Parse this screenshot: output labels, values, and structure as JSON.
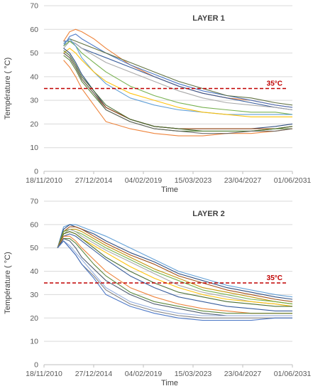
{
  "chart_data": [
    {
      "type": "line",
      "title": "LAYER 1",
      "xlabel": "Time",
      "ylabel": "Température ( °C)",
      "ylim": [
        0,
        70
      ],
      "yticks": [
        0,
        10,
        20,
        30,
        40,
        50,
        60,
        70
      ],
      "xticks": [
        "18/11/2010",
        "27/12/2014",
        "04/02/2019",
        "15/03/2023",
        "23/04/2027",
        "01/06/2031"
      ],
      "xlim": [
        "2010-11-18",
        "2031-06-01"
      ],
      "threshold": {
        "value": 35,
        "label": "35°C",
        "color": "#c00000"
      },
      "series_x": [
        "2012-07-01",
        "2013-01-01",
        "2013-07-01",
        "2014-01-01",
        "2015-01-01",
        "2016-01-01",
        "2018-01-01",
        "2020-01-01",
        "2022-01-01",
        "2024-01-01",
        "2026-01-01",
        "2028-01-01",
        "2030-01-01",
        "2031-06-01"
      ],
      "series": [
        {
          "color": "#ed7d31",
          "values": [
            55,
            59,
            60,
            59,
            56,
            52,
            45,
            40,
            36,
            33,
            31,
            30,
            28,
            27
          ]
        },
        {
          "color": "#4472c4",
          "values": [
            53,
            57,
            58,
            56,
            53,
            50,
            45,
            41,
            37,
            34,
            32,
            30,
            28,
            27
          ]
        },
        {
          "color": "#5a6b3a",
          "values": [
            54,
            56,
            55,
            54,
            52,
            50,
            46,
            42,
            38,
            35,
            32,
            31,
            29,
            28
          ]
        },
        {
          "color": "#2f5597",
          "values": [
            55,
            55,
            54,
            52,
            50,
            48,
            44,
            40,
            36,
            33,
            31,
            29,
            27,
            26
          ]
        },
        {
          "color": "#a5a5a5",
          "values": [
            52,
            55,
            54,
            52,
            49,
            46,
            42,
            38,
            34,
            31,
            29,
            28,
            27,
            26
          ]
        },
        {
          "color": "#70ad47",
          "values": [
            53,
            55,
            53,
            50,
            46,
            42,
            36,
            32,
            29,
            27,
            26,
            25,
            25,
            24
          ]
        },
        {
          "color": "#5b9bd5",
          "values": [
            54,
            56,
            53,
            48,
            42,
            37,
            31,
            28,
            26,
            25,
            24,
            24,
            24,
            24
          ]
        },
        {
          "color": "#ffc000",
          "values": [
            50,
            52,
            50,
            47,
            42,
            38,
            33,
            30,
            27,
            25,
            24,
            23,
            23,
            23
          ]
        },
        {
          "color": "#264478",
          "values": [
            52,
            50,
            46,
            41,
            34,
            27,
            22,
            19,
            18,
            18,
            18,
            18,
            19,
            20
          ]
        },
        {
          "color": "#9e480e",
          "values": [
            50,
            48,
            44,
            39,
            33,
            27,
            22,
            19,
            18,
            18,
            18,
            18,
            18,
            19
          ]
        },
        {
          "color": "#43682b",
          "values": [
            51,
            49,
            45,
            40,
            34,
            28,
            22,
            19,
            18,
            17,
            17,
            17,
            18,
            19
          ]
        },
        {
          "color": "#548235",
          "values": [
            49,
            47,
            43,
            38,
            32,
            26,
            21,
            18,
            17,
            17,
            17,
            17,
            18,
            18
          ]
        },
        {
          "color": "#ed7d31",
          "values": [
            47,
            44,
            40,
            35,
            28,
            21,
            18,
            16,
            15,
            15,
            16,
            16,
            17,
            18
          ]
        },
        {
          "color": "#636363",
          "values": [
            50,
            48,
            44,
            39,
            33,
            26,
            21,
            18,
            17,
            16,
            16,
            17,
            17,
            18
          ]
        }
      ]
    },
    {
      "type": "line",
      "title": "LAYER 2",
      "xlabel": "Time",
      "ylabel": "Température ( °C)",
      "ylim": [
        0,
        70
      ],
      "yticks": [
        0,
        10,
        20,
        30,
        40,
        50,
        60,
        70
      ],
      "xticks": [
        "18/11/2010",
        "27/12/2014",
        "04/02/2019",
        "15/03/2023",
        "23/04/2027",
        "01/06/2031"
      ],
      "xlim": [
        "2010-11-18",
        "2031-06-01"
      ],
      "threshold": {
        "value": 35,
        "label": "35°C",
        "color": "#c00000"
      },
      "series_x": [
        "2012-01-01",
        "2012-07-01",
        "2013-01-01",
        "2013-07-01",
        "2014-01-01",
        "2015-01-01",
        "2016-01-01",
        "2018-01-01",
        "2020-01-01",
        "2022-01-01",
        "2024-01-01",
        "2026-01-01",
        "2028-01-01",
        "2030-01-01",
        "2031-06-01"
      ],
      "series": [
        {
          "color": "#5b9bd5",
          "values": [
            50,
            59,
            60,
            60,
            59,
            57,
            55,
            50,
            45,
            40,
            37,
            34,
            32,
            30,
            29
          ]
        },
        {
          "color": "#264478",
          "values": [
            50,
            58,
            60,
            59,
            58,
            56,
            53,
            48,
            44,
            39,
            36,
            33,
            31,
            29,
            28
          ]
        },
        {
          "color": "#9e480e",
          "values": [
            50,
            57,
            59,
            59,
            58,
            55,
            52,
            47,
            43,
            38,
            35,
            32,
            30,
            28,
            27
          ]
        },
        {
          "color": "#bf9000",
          "values": [
            50,
            57,
            58,
            58,
            57,
            54,
            51,
            46,
            41,
            37,
            33,
            31,
            29,
            27,
            26
          ]
        },
        {
          "color": "#70ad47",
          "values": [
            50,
            57,
            58,
            57,
            56,
            53,
            50,
            45,
            40,
            36,
            32,
            30,
            28,
            27,
            26
          ]
        },
        {
          "color": "#a5a5a5",
          "values": [
            50,
            56,
            58,
            57,
            55,
            52,
            49,
            44,
            39,
            34,
            31,
            29,
            27,
            26,
            25
          ]
        },
        {
          "color": "#ffc000",
          "values": [
            50,
            56,
            57,
            56,
            54,
            51,
            48,
            42,
            37,
            33,
            30,
            28,
            27,
            26,
            25
          ]
        },
        {
          "color": "#43682b",
          "values": [
            50,
            56,
            57,
            56,
            54,
            50,
            46,
            40,
            35,
            31,
            29,
            27,
            26,
            25,
            25
          ]
        },
        {
          "color": "#2f5597",
          "values": [
            50,
            55,
            56,
            55,
            53,
            49,
            45,
            38,
            33,
            29,
            27,
            25,
            24,
            23,
            23
          ]
        },
        {
          "color": "#ed7d31",
          "values": [
            50,
            55,
            55,
            53,
            50,
            45,
            40,
            33,
            29,
            26,
            24,
            23,
            22,
            22,
            22
          ]
        },
        {
          "color": "#548235",
          "values": [
            50,
            54,
            54,
            52,
            49,
            43,
            38,
            31,
            27,
            25,
            23,
            22,
            22,
            22,
            22
          ]
        },
        {
          "color": "#44546a",
          "values": [
            50,
            54,
            53,
            50,
            46,
            41,
            36,
            30,
            26,
            24,
            22,
            21,
            21,
            21,
            21
          ]
        },
        {
          "color": "#8faadc",
          "values": [
            50,
            53,
            51,
            48,
            45,
            39,
            33,
            27,
            24,
            22,
            21,
            21,
            21,
            21,
            21
          ]
        },
        {
          "color": "#7f7f7f",
          "values": [
            50,
            53,
            50,
            47,
            43,
            38,
            32,
            26,
            23,
            21,
            20,
            20,
            20,
            20,
            20
          ]
        },
        {
          "color": "#4472c4",
          "values": [
            50,
            53,
            50,
            47,
            43,
            37,
            30,
            25,
            22,
            20,
            19,
            19,
            19,
            20,
            20
          ]
        }
      ]
    }
  ]
}
